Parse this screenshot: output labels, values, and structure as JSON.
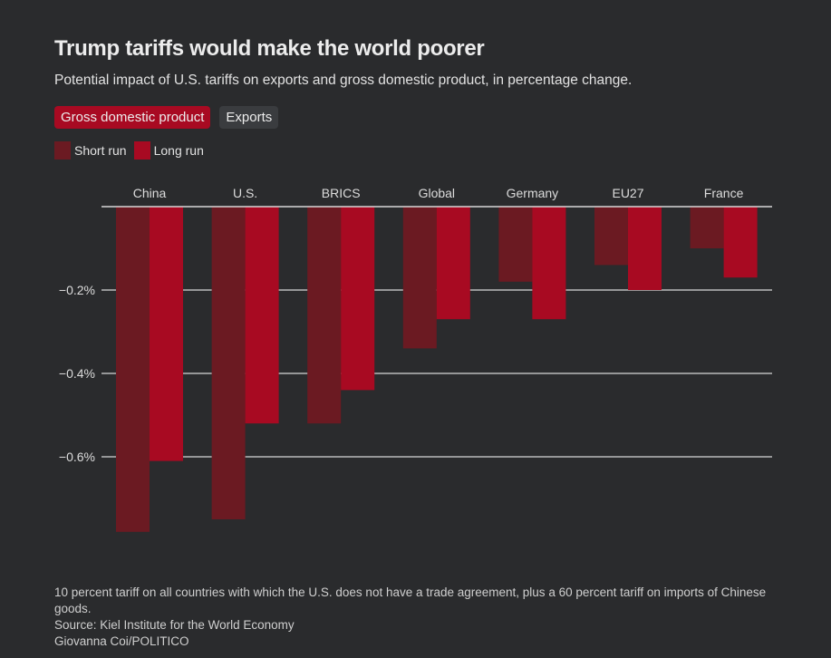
{
  "header": {
    "title": "Trump tariffs would make the world poorer",
    "subtitle": "Potential impact of U.S. tariffs on exports and gross domestic product, in percentage change."
  },
  "tabs": [
    {
      "label": "Gross domestic product",
      "active": true
    },
    {
      "label": "Exports",
      "active": false
    }
  ],
  "colors": {
    "short_run": "#6b1a22",
    "long_run": "#a80a22",
    "background": "#2a2b2d",
    "gridline": "#d8d8d8",
    "active_tab": "#a80a22",
    "inactive_tab": "#3a3c3f"
  },
  "chart_data": {
    "type": "bar",
    "title": "Trump tariffs would make the world poorer",
    "subtitle": "Potential impact of U.S. tariffs on exports and gross domestic product, in percentage change.",
    "xlabel": "",
    "ylabel": "",
    "categories": [
      "China",
      "U.S.",
      "BRICS",
      "Global",
      "Germany",
      "EU27",
      "France"
    ],
    "series": [
      {
        "name": "Short run",
        "values": [
          -0.78,
          -0.75,
          -0.52,
          -0.34,
          -0.18,
          -0.14,
          -0.1
        ]
      },
      {
        "name": "Long run",
        "values": [
          -0.61,
          -0.52,
          -0.44,
          -0.27,
          -0.27,
          -0.2,
          -0.17
        ]
      }
    ],
    "ylim": [
      -0.8,
      0
    ],
    "yticks": [
      0,
      -0.2,
      -0.4,
      -0.6
    ],
    "ytick_labels": [
      "",
      "−0.2%",
      "−0.4%",
      "−0.6%"
    ],
    "grid": true,
    "legend_position": "top-left",
    "category_labels_position": "top"
  },
  "notes": {
    "footnote": "10 percent tariff on all countries with which the U.S. does not have a trade agreement, plus a 60 percent tariff on imports of Chinese goods.",
    "source": "Source: Kiel Institute for the World Economy",
    "credit": "Giovanna Coi/POLITICO"
  }
}
